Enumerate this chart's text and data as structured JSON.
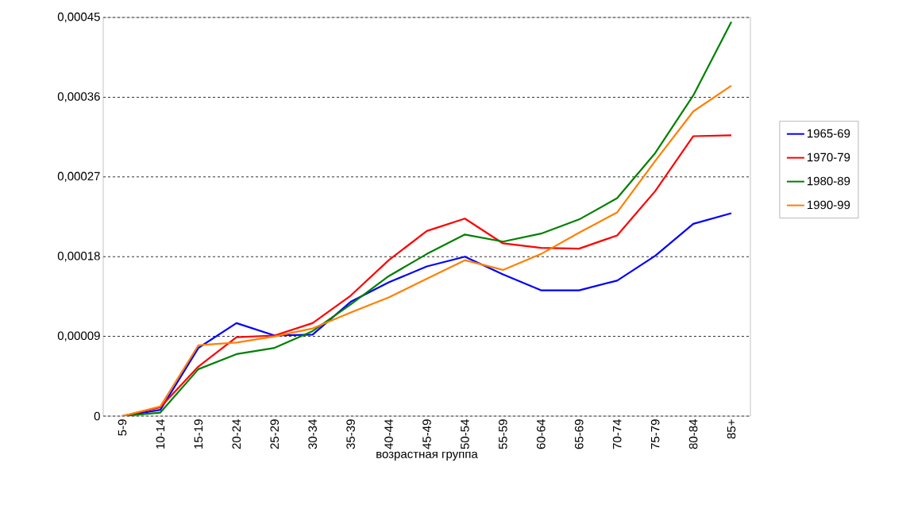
{
  "chart_data": {
    "type": "line",
    "xlabel": "возрастная группа",
    "categories": [
      "5-9",
      "10-14",
      "15-19",
      "20-24",
      "25-29",
      "30-34",
      "35-39",
      "40-44",
      "45-49",
      "50-54",
      "55-59",
      "60-64",
      "65-69",
      "70-74",
      "75-79",
      "80-84",
      "85+"
    ],
    "series": [
      {
        "name": "1965-69",
        "color": "#0000ff",
        "values": [
          0,
          7e-06,
          7.7e-05,
          0.000105,
          9.1e-05,
          9.2e-05,
          0.000129,
          0.000151,
          0.000169,
          0.00018,
          0.00016,
          0.000142,
          0.000142,
          0.000153,
          0.000181,
          0.000217,
          0.000229
        ]
      },
      {
        "name": "1970-79",
        "color": "#ff0000",
        "values": [
          0,
          1e-05,
          5.6e-05,
          8.9e-05,
          9.1e-05,
          0.000105,
          0.000136,
          0.000176,
          0.000209,
          0.000223,
          0.000195,
          0.00019,
          0.000189,
          0.000204,
          0.000254,
          0.000316,
          0.000317
        ]
      },
      {
        "name": "1980-89",
        "color": "#008000",
        "values": [
          0,
          4e-06,
          5.3e-05,
          7e-05,
          7.7e-05,
          9.6e-05,
          0.000126,
          0.000158,
          0.000183,
          0.000205,
          0.000197,
          0.000206,
          0.000222,
          0.000246,
          0.000297,
          0.000362,
          0.000445
        ]
      },
      {
        "name": "1990-99",
        "color": "#ff8000",
        "values": [
          0,
          1.1e-05,
          8e-05,
          8.3e-05,
          9e-05,
          9.9e-05,
          0.000117,
          0.000134,
          0.000155,
          0.000176,
          0.000165,
          0.000183,
          0.000207,
          0.00023,
          0.000288,
          0.000344,
          0.000373
        ]
      }
    ],
    "ylim": [
      0,
      0.00045
    ],
    "yticks": [
      0,
      {
        "value": 9e-05,
        "label": "0,00009"
      },
      {
        "value": 0.00018,
        "label": "0,00018"
      },
      {
        "value": 0.00027,
        "label": "0,00027"
      },
      {
        "value": 0.00036,
        "label": "0,00036"
      },
      {
        "value": 0.00045,
        "label": "0,00045"
      }
    ],
    "grid": "y",
    "legend": "right",
    "line_style": "solid",
    "marker": "none"
  }
}
